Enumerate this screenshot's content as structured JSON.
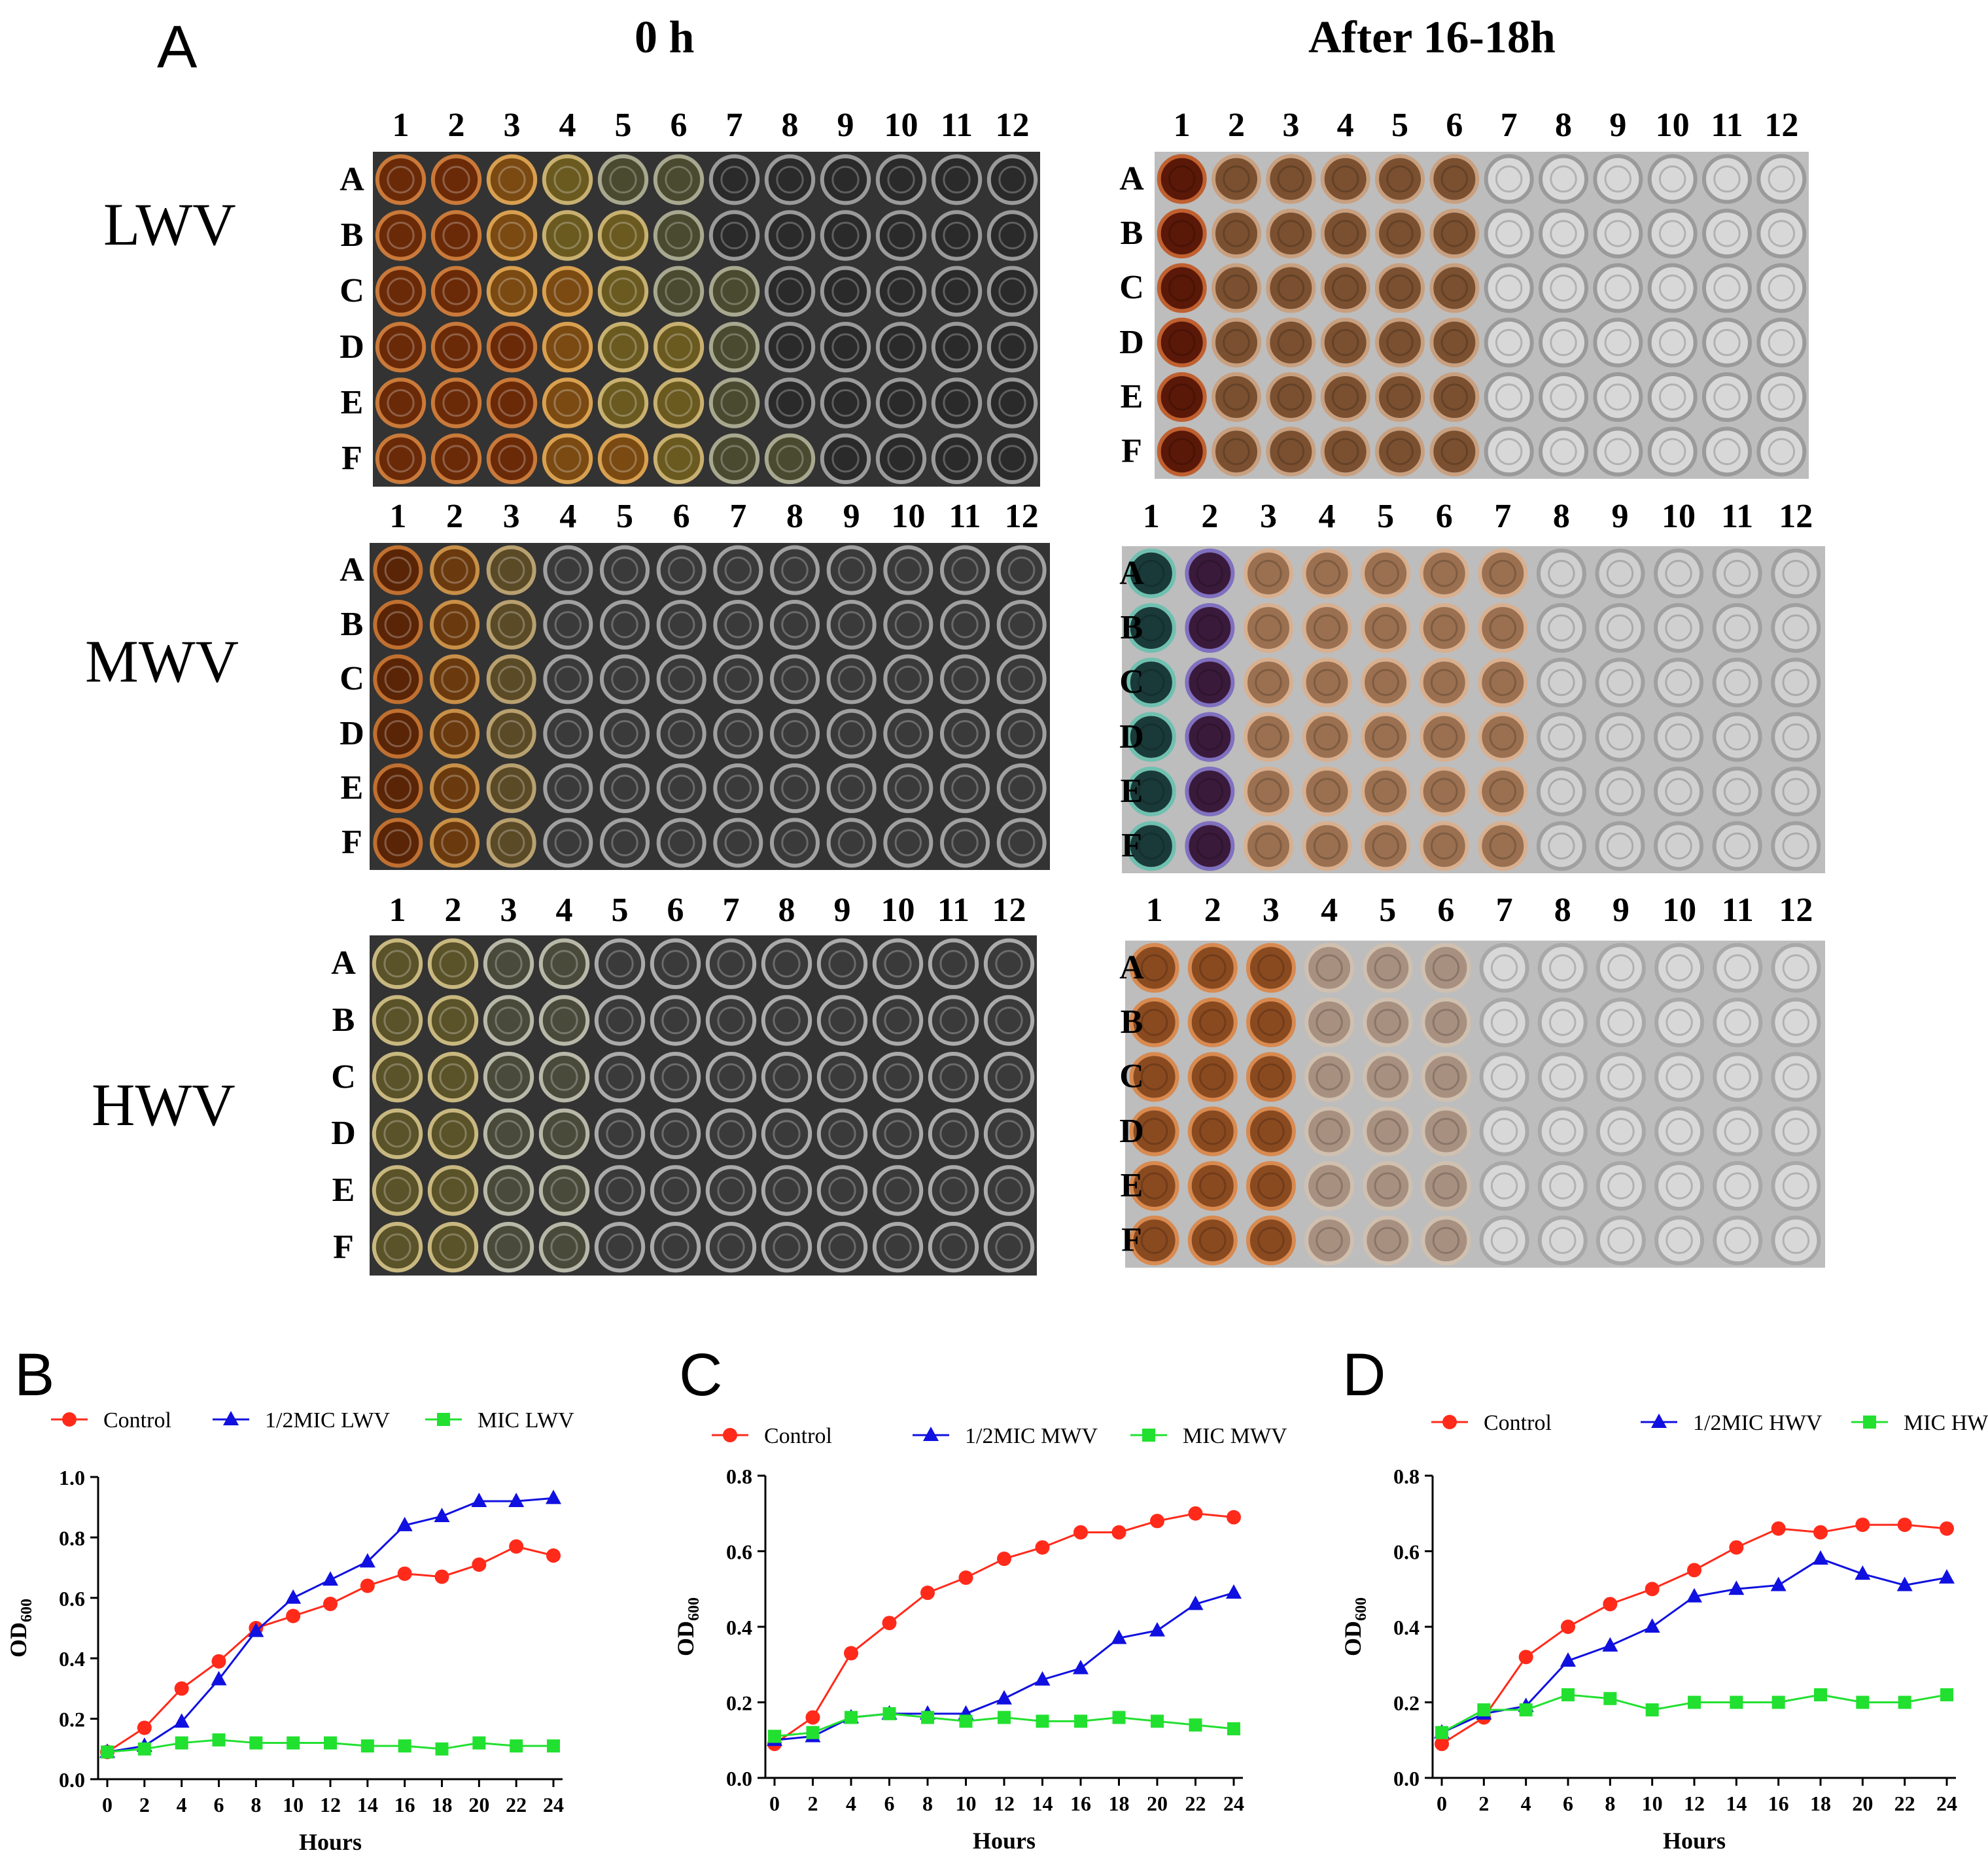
{
  "figure": {
    "panel_labels": [
      "A",
      "B",
      "C",
      "D"
    ],
    "plates_header": {
      "time_0": "0 h",
      "time_after": "After 16-18h"
    },
    "row_labels": [
      "LWV",
      "MWV",
      "HWV"
    ],
    "column_numbers": [
      "1",
      "2",
      "3",
      "4",
      "5",
      "6",
      "7",
      "8",
      "9",
      "10",
      "11",
      "12"
    ],
    "row_letters": [
      "A",
      "B",
      "C",
      "D",
      "E",
      "F"
    ]
  },
  "colors": {
    "control": "#ff2a1a",
    "half_mic": "#1010e0",
    "mic": "#22e030",
    "plate_bg": "#3a3a3a"
  },
  "chart_data": [
    {
      "type": "line",
      "panel": "B",
      "title": "",
      "xlabel": "Hours",
      "ylabel": "OD600",
      "xlim": [
        0,
        24
      ],
      "ylim": [
        0.0,
        1.0
      ],
      "xticks": [
        0,
        2,
        4,
        6,
        8,
        10,
        12,
        14,
        16,
        18,
        20,
        22,
        24
      ],
      "yticks": [
        "0.0",
        "0.2",
        "0.4",
        "0.6",
        "0.8",
        "1.0"
      ],
      "x": [
        0,
        2,
        4,
        6,
        8,
        10,
        12,
        14,
        16,
        18,
        20,
        22,
        24
      ],
      "series": [
        {
          "name": "Control",
          "marker": "circle",
          "color": "#ff2a1a",
          "values": [
            0.09,
            0.17,
            0.3,
            0.39,
            0.5,
            0.54,
            0.58,
            0.64,
            0.68,
            0.67,
            0.71,
            0.77,
            0.74
          ]
        },
        {
          "name": "1/2MIC LWV",
          "marker": "triangle",
          "color": "#1010e0",
          "values": [
            0.09,
            0.11,
            0.19,
            0.33,
            0.49,
            0.6,
            0.66,
            0.72,
            0.84,
            0.87,
            0.92,
            0.92,
            0.93
          ]
        },
        {
          "name": "MIC LWV",
          "marker": "square",
          "color": "#22e030",
          "values": [
            0.09,
            0.1,
            0.12,
            0.13,
            0.12,
            0.12,
            0.12,
            0.11,
            0.11,
            0.1,
            0.12,
            0.11,
            0.11
          ]
        }
      ]
    },
    {
      "type": "line",
      "panel": "C",
      "title": "",
      "xlabel": "Hours",
      "ylabel": "OD600",
      "xlim": [
        0,
        24
      ],
      "ylim": [
        0.0,
        0.8
      ],
      "xticks": [
        0,
        2,
        4,
        6,
        8,
        10,
        12,
        14,
        16,
        18,
        20,
        22,
        24
      ],
      "yticks": [
        "0.0",
        "0.2",
        "0.4",
        "0.6",
        "0.8"
      ],
      "x": [
        0,
        2,
        4,
        6,
        8,
        10,
        12,
        14,
        16,
        18,
        20,
        22,
        24
      ],
      "series": [
        {
          "name": "Control",
          "marker": "circle",
          "color": "#ff2a1a",
          "values": [
            0.09,
            0.16,
            0.33,
            0.41,
            0.49,
            0.53,
            0.58,
            0.61,
            0.65,
            0.65,
            0.68,
            0.7,
            0.69
          ]
        },
        {
          "name": "1/2MIC MWV",
          "marker": "triangle",
          "color": "#1010e0",
          "values": [
            0.1,
            0.11,
            0.16,
            0.17,
            0.17,
            0.17,
            0.21,
            0.26,
            0.29,
            0.37,
            0.39,
            0.46,
            0.49
          ]
        },
        {
          "name": "MIC MWV",
          "marker": "square",
          "color": "#22e030",
          "values": [
            0.11,
            0.12,
            0.16,
            0.17,
            0.16,
            0.15,
            0.16,
            0.15,
            0.15,
            0.16,
            0.15,
            0.14,
            0.13
          ]
        }
      ]
    },
    {
      "type": "line",
      "panel": "D",
      "title": "",
      "xlabel": "Hours",
      "ylabel": "OD600",
      "xlim": [
        0,
        24
      ],
      "ylim": [
        0.0,
        0.8
      ],
      "xticks": [
        0,
        2,
        4,
        6,
        8,
        10,
        12,
        14,
        16,
        18,
        20,
        22,
        24
      ],
      "yticks": [
        "0.0",
        "0.2",
        "0.4",
        "0.6",
        "0.8"
      ],
      "x": [
        0,
        2,
        4,
        6,
        8,
        10,
        12,
        14,
        16,
        18,
        20,
        22,
        24
      ],
      "series": [
        {
          "name": "Control",
          "marker": "circle",
          "color": "#ff2a1a",
          "values": [
            0.09,
            0.16,
            0.32,
            0.4,
            0.46,
            0.5,
            0.55,
            0.61,
            0.66,
            0.65,
            0.67,
            0.67,
            0.66
          ]
        },
        {
          "name": "1/2MIC HWV",
          "marker": "triangle",
          "color": "#1010e0",
          "values": [
            0.12,
            0.17,
            0.19,
            0.31,
            0.35,
            0.4,
            0.48,
            0.5,
            0.51,
            0.58,
            0.54,
            0.51,
            0.53
          ]
        },
        {
          "name": "MIC HWV",
          "marker": "square",
          "color": "#22e030",
          "values": [
            0.12,
            0.18,
            0.18,
            0.22,
            0.21,
            0.18,
            0.2,
            0.2,
            0.2,
            0.22,
            0.2,
            0.2,
            0.22
          ]
        }
      ]
    }
  ]
}
